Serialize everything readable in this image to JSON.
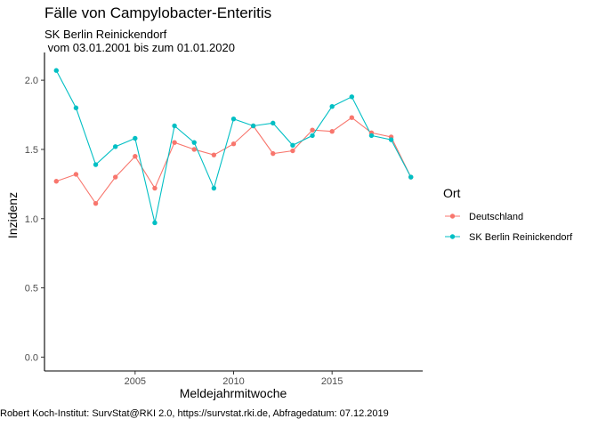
{
  "chart_data": {
    "type": "line",
    "title": "Fälle von Campylobacter-Enteritis",
    "subtitle": "SK Berlin Reinickendorf\n vom 03.01.2001 bis zum 01.01.2020",
    "caption": "Robert Koch-Institut: SurvStat@RKI 2.0, https://survstat.rki.de, Abfragedatum: 07.12.2019",
    "xlabel": "Meldejahrmitwoche",
    "ylabel": "Inzidenz",
    "xlim": [
      2000.4,
      2019.6
    ],
    "ylim": [
      -0.1,
      2.2
    ],
    "xticks": [
      2005,
      2010,
      2015
    ],
    "yticks": [
      0.0,
      0.5,
      1.0,
      1.5,
      2.0
    ],
    "ytick_labels": [
      "0.0",
      "0.5",
      "1.0",
      "1.5",
      "2.0"
    ],
    "grid": false,
    "legend": {
      "title": "Ort",
      "position": "right"
    },
    "x": [
      2001,
      2002,
      2003,
      2004,
      2005,
      2006,
      2007,
      2008,
      2009,
      2010,
      2011,
      2012,
      2013,
      2014,
      2015,
      2016,
      2017,
      2018,
      2019
    ],
    "series": [
      {
        "name": "Deutschland",
        "color": "#F8766D",
        "values": [
          1.27,
          1.32,
          1.11,
          1.3,
          1.45,
          1.22,
          1.55,
          1.5,
          1.46,
          1.54,
          1.67,
          1.47,
          1.49,
          1.64,
          1.63,
          1.73,
          1.62,
          1.59,
          1.3
        ]
      },
      {
        "name": "SK Berlin Reinickendorf",
        "color": "#00BFC4",
        "values": [
          2.07,
          1.8,
          1.39,
          1.52,
          1.58,
          0.97,
          1.67,
          1.55,
          1.22,
          1.72,
          1.67,
          1.69,
          1.53,
          1.6,
          1.81,
          1.88,
          1.6,
          1.57,
          1.3
        ]
      }
    ]
  }
}
